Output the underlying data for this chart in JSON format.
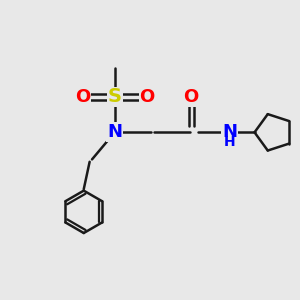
{
  "background_color": "#e8e8e8",
  "bond_color": "#1a1a1a",
  "N_color": "#0000ff",
  "O_color": "#ff0000",
  "S_color": "#cccc00",
  "NH_color": "#0000ff",
  "line_width": 1.8,
  "font_size": 13,
  "fig_w": 3.0,
  "fig_h": 3.0,
  "dpi": 100,
  "xlim": [
    0,
    10
  ],
  "ylim": [
    0,
    10
  ]
}
